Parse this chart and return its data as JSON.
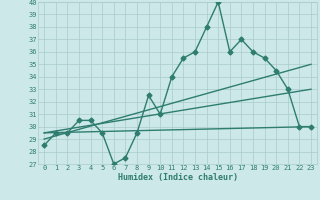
{
  "xlabel": "Humidex (Indice chaleur)",
  "x_values": [
    0,
    1,
    2,
    3,
    4,
    5,
    6,
    7,
    8,
    9,
    10,
    11,
    12,
    13,
    14,
    15,
    16,
    17,
    18,
    19,
    20,
    21,
    22,
    23
  ],
  "main_line": [
    28.5,
    29.5,
    29.5,
    30.5,
    30.5,
    29.5,
    27.0,
    27.5,
    29.5,
    32.5,
    31.0,
    34.0,
    35.5,
    36.0,
    38.0,
    40.0,
    36.0,
    37.0,
    36.0,
    35.5,
    34.5,
    33.0,
    30.0,
    30.0
  ],
  "trend_line1_x": [
    0,
    23
  ],
  "trend_line1_y": [
    29.0,
    35.0
  ],
  "trend_line2_x": [
    0,
    23
  ],
  "trend_line2_y": [
    29.5,
    33.0
  ],
  "trend_line3_x": [
    0,
    23
  ],
  "trend_line3_y": [
    29.5,
    30.0
  ],
  "line_color": "#2e7d6e",
  "bg_color": "#cce8e8",
  "grid_color": "#aacccc",
  "ylim": [
    27,
    40
  ],
  "xlim": [
    -0.5,
    23.5
  ],
  "yticks": [
    27,
    28,
    29,
    30,
    31,
    32,
    33,
    34,
    35,
    36,
    37,
    38,
    39,
    40
  ],
  "xticks": [
    0,
    1,
    2,
    3,
    4,
    5,
    6,
    7,
    8,
    9,
    10,
    11,
    12,
    13,
    14,
    15,
    16,
    17,
    18,
    19,
    20,
    21,
    22,
    23
  ],
  "marker": "D",
  "marker_size": 2.5,
  "linewidth": 1.0
}
